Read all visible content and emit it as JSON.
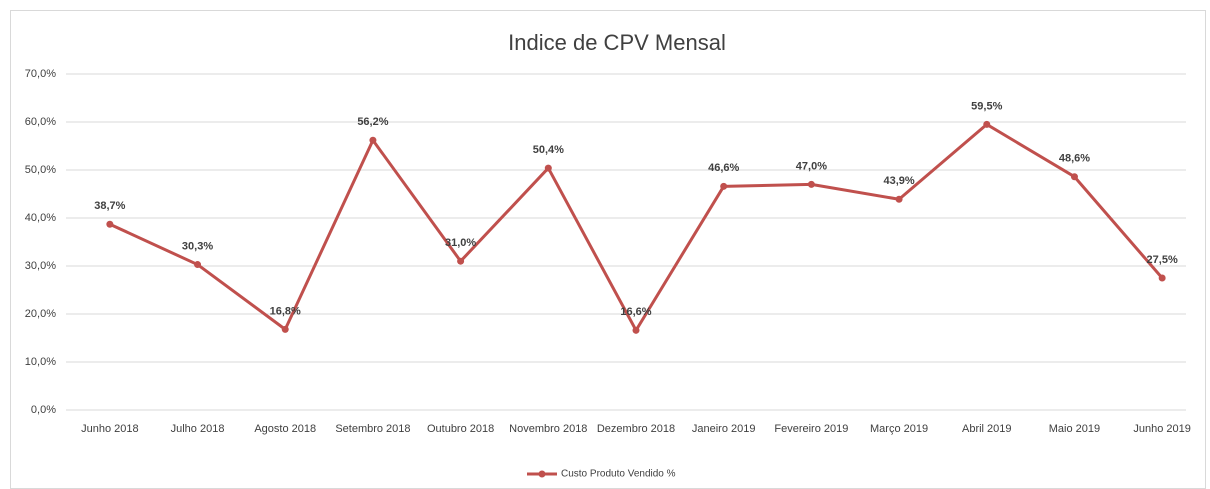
{
  "chart_data": {
    "type": "line",
    "title": "Indice de CPV Mensal",
    "categories": [
      "Junho 2018",
      "Julho 2018",
      "Agosto 2018",
      "Setembro 2018",
      "Outubro 2018",
      "Novembro 2018",
      "Dezembro 2018",
      "Janeiro 2019",
      "Fevereiro 2019",
      "Março 2019",
      "Abril 2019",
      "Maio 2019",
      "Junho 2019"
    ],
    "series": [
      {
        "name": "Custo Produto Vendido %",
        "color": "#c0504d",
        "values": [
          38.7,
          30.3,
          16.8,
          56.2,
          31.0,
          50.4,
          16.6,
          46.6,
          47.0,
          43.9,
          59.5,
          48.6,
          27.5
        ],
        "value_labels": [
          "38,7%",
          "30,3%",
          "16,8%",
          "56,2%",
          "31,0%",
          "50,4%",
          "16,6%",
          "46,6%",
          "47,0%",
          "43,9%",
          "59,5%",
          "48,6%",
          "27,5%"
        ]
      }
    ],
    "ylim": [
      0,
      70
    ],
    "yticks": [
      {
        "value": 0,
        "label": "0,0%"
      },
      {
        "value": 10,
        "label": "10,0%"
      },
      {
        "value": 20,
        "label": "20,0%"
      },
      {
        "value": 30,
        "label": "30,0%"
      },
      {
        "value": 40,
        "label": "40,0%"
      },
      {
        "value": 50,
        "label": "50,0%"
      },
      {
        "value": 60,
        "label": "60,0%"
      },
      {
        "value": 70,
        "label": "70,0%"
      }
    ],
    "grid": true,
    "legend": "bottom"
  }
}
